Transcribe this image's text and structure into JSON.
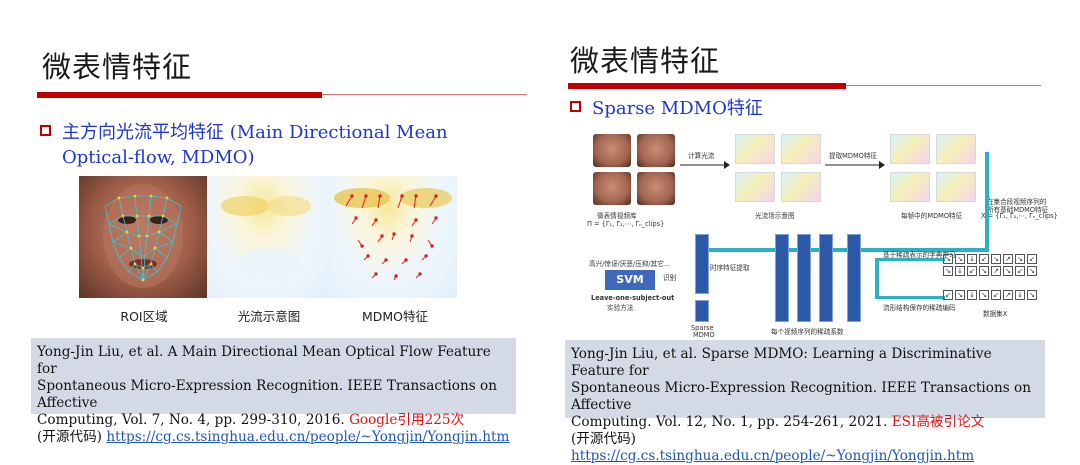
{
  "left": {
    "title": "微表情特征",
    "bullet_line1": "主方向光流平均特征 (Main Directional Mean",
    "bullet_line2": "Optical-flow, MDMO)",
    "captions": [
      "ROI区域",
      "光流示意图",
      "MDMO特征"
    ],
    "citation": {
      "line1": "Yong-Jin Liu, et al. A Main Directional Mean Optical Flow Feature for",
      "line2": "Spontaneous Micro-Expression Recognition. IEEE Transactions on Affective",
      "line3": "Computing, Vol. 7, No. 4, pp. 299-310, 2016.",
      "highlight": "Google引用225次",
      "open_source_label": "(开源代码)",
      "link": "https://cg.cs.tsinghua.edu.cn/people/~Yongjin/Yongjin.htm"
    }
  },
  "right": {
    "title": "微表情特征",
    "bullet": "Sparse MDMO特征",
    "diagram": {
      "label_compute_flow": "计算光流",
      "label_extract_mdmo": "提取MDMO特征",
      "label_video_db": "微表情视频库",
      "label_video_formula": "Π = {Γ₁, Γ₂,⋯, Γₙ_clips}",
      "label_flow_diagram": "光流场示意图",
      "label_mdmo_per_frame": "每帧中的MDMO特征",
      "label_all_features_1": "在集合段视频序列的",
      "label_all_features_2": "所有基础MDMO特征",
      "label_all_features_3": "X = {Γ₁, Γ₂,⋯, Γₙ_clips}",
      "label_classes": "高兴/惊讶/厌恶/压抑/其它...",
      "label_recognize": "识别",
      "svm": "SVM",
      "label_loso_1": "Leave-one-subject-out",
      "label_loso_2": "实验方法",
      "label_temporal": "时序特征提取",
      "label_sparse_1": "Sparse",
      "label_sparse_2": "MDMO",
      "label_sparse_coeff": "每个视频序列的稀疏系数",
      "label_dict_learning": "基于稀疏表示的字典学习",
      "label_preserve": "流形结构保存的稀疏编码",
      "label_dictionary": "数据集X"
    },
    "citation": {
      "line1": "Yong-Jin Liu, et al. Sparse MDMO: Learning a Discriminative Feature for",
      "line2": "Spontaneous Micro-Expression Recognition. IEEE Transactions on Affective",
      "line3": "Computing. Vol. 12, No. 1, pp. 254-261, 2021.",
      "highlight": "ESI高被引论文",
      "open_source_label": "(开源代码)",
      "link": "https://cg.cs.tsinghua.edu.cn/people/~Yongjin/Yongjin.htm"
    }
  },
  "colors": {
    "title_bar": "#c00000",
    "bullet_text": "#1f37c8",
    "citation_bg": "#d3dae6",
    "highlight": "#e01212",
    "link": "#1f57b8"
  }
}
